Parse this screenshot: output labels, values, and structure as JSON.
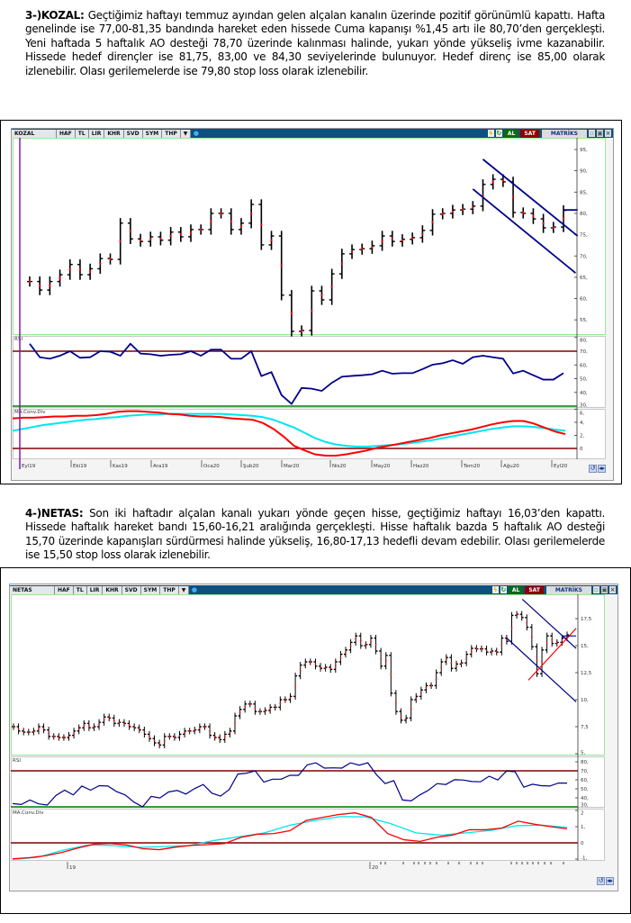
{
  "sections": [
    {
      "title": "3-)KOZAL:",
      "body": "Geçtiğimiz haftayı temmuz ayından gelen alçalan kanalın üzerinde pozitif görünümlü kapattı. Hafta genelinde ise 77,00-81,35 bandında hareket eden hissede Cuma kapanışı %1,45 artı ile 80,70’den gerçekleşti. Yeni haftada 5 haftalık AO desteği 78,70 üzerinde kalınması halinde, yukarı yönde yükseliş ivme kazanabilir. Hissede hedef dirençler ise 81,75, 83,00 ve 84,30 seviyelerinde bulunuyor. Hedef direnç ise 85,00 olarak izlenebilir. Olası gerilemelerde ise 79,80 stop loss olarak izlenebilir."
    },
    {
      "title": "4-)NETAS:",
      "body": "Son iki haftadır alçalan kanalı yukarı yönde geçen hisse, geçtiğimiz haftayı 16,03’den kapattı. Hissede haftalık hareket bandı 15,60-16,21 aralığında gerçekleşti. Hisse haftalık bazda 5 haftalık AO desteği 15,70 üzerinde kapanışları sürdürmesi halinde yükseliş, 16,80-17,13 hedefli devam edebilir. Olası gerilemelerde ise 15,50 stop loss olarak izlenebilir."
    }
  ],
  "toolbar": {
    "buttons": [
      "HAF",
      "TL",
      "LIR",
      "KHR",
      "SVD",
      "SYM",
      "THP"
    ],
    "dropdown_icon": "▼",
    "buy": "AL",
    "sell": "SAT",
    "brand": "MATRİKS"
  },
  "colors": {
    "bars": "#000000",
    "marker": "#ff0000",
    "channel": "#00008b",
    "rsi": "#00008b",
    "macd": "#ff0000",
    "signal": "#00e5ee",
    "upper_ref": "#800000",
    "lower_ref": "#008000"
  },
  "chart_data": [
    {
      "type": "ohlc",
      "symbol": "KOZAL",
      "price_ticks": [
        "95,",
        "90,",
        "85,",
        "80,",
        "75,",
        "70,",
        "65,",
        "60,",
        "55,"
      ],
      "price_tick_values": [
        95,
        90,
        85,
        80,
        75,
        70,
        65,
        60,
        55
      ],
      "date_labels": [
        "Eyl19",
        "Eki19",
        "Kas19",
        "Ara19",
        "Oca20",
        "Şub20",
        "Mar20",
        "Nis20",
        "May20",
        "Haz20",
        "Tem20",
        "Ağu20",
        "Eyl20"
      ],
      "close": [
        64,
        62,
        64,
        65.6,
        68,
        65.6,
        67,
        69.4,
        69.2,
        77.7,
        74,
        73.4,
        74.5,
        73.7,
        75.6,
        74.5,
        76.2,
        76.2,
        80,
        80,
        76.2,
        77.7,
        82.1,
        72.6,
        74.7,
        60.8,
        52.3,
        52.5,
        61.8,
        59.7,
        65.8,
        70.5,
        71.5,
        71.7,
        72.4,
        74.7,
        73.4,
        73.9,
        74.3,
        76,
        79.8,
        80,
        80.8,
        81,
        81.7,
        86.8,
        88,
        87.4,
        80.2,
        80,
        78.7,
        76.6,
        76.8,
        80.7
      ],
      "bar_range": 1.2,
      "trendlines": [
        {
          "color": "channel",
          "from": [
            45.0,
            92.7
          ],
          "to": [
            54.4,
            74.7
          ]
        },
        {
          "color": "channel",
          "from": [
            44.0,
            85.7
          ],
          "to": [
            54.2,
            66.0
          ]
        },
        {
          "color": "channel",
          "from": [
            53.0,
            80.8
          ],
          "to": [
            54.4,
            80.8
          ]
        }
      ],
      "rsi": {
        "label": "RSI",
        "ticks": [
          "80,",
          "70,",
          "60,",
          "50,",
          "40,",
          "30,"
        ],
        "tick_values": [
          80,
          70,
          60,
          50,
          40,
          30
        ],
        "levels": [
          70,
          30
        ],
        "values": [
          75.4,
          65.6,
          64.5,
          66.7,
          70,
          65.2,
          65.6,
          70,
          69.6,
          66.7,
          75.4,
          68.3,
          67.8,
          66.7,
          67.4,
          67.8,
          70,
          66.7,
          71.1,
          71.1,
          64.5,
          64.5,
          70,
          51.9,
          54.7,
          38.1,
          31.6,
          43.2,
          42.7,
          41.1,
          47,
          51.4,
          52,
          52.5,
          53.2,
          55.8,
          53.6,
          54,
          54,
          56.9,
          60.2,
          61.2,
          63.4,
          60.8,
          65.6,
          66.7,
          65.6,
          64.5,
          53.8,
          55.8,
          52.5,
          49.3,
          49.3,
          54
        ]
      },
      "macd": {
        "label": "MA.Conv.Div",
        "ticks": [
          "6,",
          "4,",
          "2,",
          "0"
        ],
        "tick_values": [
          6,
          4,
          2,
          0
        ],
        "zero": 0,
        "macd": [
          4.6,
          4.7,
          4.7,
          4.8,
          4.9,
          4.9,
          5.0,
          5.0,
          5.1,
          5.3,
          5.6,
          5.7,
          5.7,
          5.6,
          5.5,
          5.3,
          5.2,
          5.0,
          4.9,
          4.9,
          4.8,
          4.6,
          4.5,
          4.4,
          3.9,
          3.0,
          1.8,
          0.4,
          -0.3,
          -0.9,
          -1.1,
          -1.1,
          -0.9,
          -0.6,
          -0.3,
          0.1,
          0.4,
          0.7,
          1.0,
          1.3,
          1.6,
          2.0,
          2.3,
          2.6,
          2.9,
          3.3,
          3.7,
          4.0,
          4.2,
          4.2,
          3.8,
          3.2,
          2.6,
          2.2
        ],
        "signal": [
          2.7,
          3.0,
          3.3,
          3.6,
          3.8,
          4.0,
          4.2,
          4.4,
          4.5,
          4.7,
          4.8,
          5.0,
          5.1,
          5.2,
          5.2,
          5.3,
          5.3,
          5.3,
          5.3,
          5.3,
          5.3,
          5.2,
          5.1,
          5.0,
          4.8,
          4.4,
          3.8,
          3.2,
          2.4,
          1.6,
          1.0,
          0.6,
          0.4,
          0.3,
          0.3,
          0.4,
          0.5,
          0.6,
          0.8,
          1.0,
          1.2,
          1.5,
          1.8,
          2.1,
          2.4,
          2.7,
          3.0,
          3.2,
          3.4,
          3.4,
          3.3,
          3.1,
          2.9,
          2.7
        ]
      }
    },
    {
      "type": "ohlc",
      "symbol": "NETAS",
      "price_ticks": [
        "17,5",
        "15,",
        "12,5",
        "10,",
        "7,5",
        "5,"
      ],
      "price_tick_values": [
        17.5,
        15,
        12.5,
        10,
        7.5,
        5
      ],
      "date_labels": [
        "19",
        "20"
      ],
      "close": [
        7.5,
        7.1,
        7.0,
        7.0,
        7.1,
        7.5,
        7.2,
        6.6,
        6.6,
        6.5,
        6.5,
        6.7,
        7.1,
        7.4,
        7.8,
        7.4,
        7.5,
        7.9,
        8.4,
        8.3,
        7.8,
        7.9,
        7.8,
        7.5,
        7.4,
        7.2,
        6.8,
        6.4,
        6.0,
        5.8,
        6.6,
        6.6,
        6.5,
        6.8,
        7.1,
        7.1,
        7.2,
        7.5,
        7.5,
        6.7,
        6.5,
        6.3,
        6.8,
        7.1,
        8.5,
        9.1,
        9.6,
        9.6,
        8.9,
        8.9,
        9.0,
        9.3,
        9.3,
        10.0,
        10.0,
        10.3,
        12.2,
        13.2,
        13.5,
        13.5,
        13.1,
        12.9,
        13.0,
        12.8,
        13.5,
        14.2,
        14.6,
        15.3,
        15.9,
        15.0,
        15.1,
        15.7,
        14.5,
        13.1,
        14.1,
        10.6,
        8.9,
        8.1,
        8.3,
        10.0,
        10.3,
        10.9,
        11.3,
        11.3,
        12.5,
        13.5,
        13.9,
        12.9,
        13.3,
        13.4,
        14.2,
        14.75,
        14.7,
        14.7,
        14.4,
        14.5,
        14.4,
        15.7,
        15.4,
        17.8,
        17.9,
        17.6,
        16.7,
        14.9,
        12.4,
        14.6,
        15.9,
        15.2,
        15.3,
        15.7,
        16.0
      ],
      "bar_range": 0.3,
      "trendlines": [
        {
          "color": "channel",
          "from": [
            101.1,
            19.3
          ],
          "to": [
            111.8,
            14.75
          ]
        },
        {
          "color": "channel",
          "from": [
            97.9,
            15.75
          ],
          "to": [
            111.8,
            9.8
          ]
        },
        {
          "color": "macd",
          "from": [
            102.3,
            11.8
          ],
          "to": [
            111.8,
            16.6
          ]
        },
        {
          "color": "channel",
          "from": [
            109.0,
            15.9
          ],
          "to": [
            111.8,
            15.9
          ]
        }
      ],
      "rsi": {
        "label": "RSI",
        "ticks": [
          "80,",
          "70,",
          "60,",
          "50,",
          "40,",
          "30,"
        ],
        "tick_values": [
          80,
          70,
          60,
          50,
          40,
          30
        ],
        "levels": [
          70,
          30
        ],
        "values": [
          33.6,
          32.6,
          37.6,
          33.3,
          32,
          42.6,
          48.5,
          43.2,
          53.1,
          48.5,
          53.5,
          53.1,
          46.9,
          43.2,
          35.3,
          30,
          41.6,
          39.9,
          46.5,
          48.2,
          44.2,
          50.2,
          54.8,
          45.2,
          41.9,
          49.2,
          66.4,
          67.4,
          70,
          57.4,
          60.7,
          60.7,
          65,
          65,
          76.6,
          78.9,
          73,
          73.3,
          73,
          78.9,
          76.3,
          78.9,
          65.7,
          55.8,
          59.1,
          37.6,
          36.6,
          43.2,
          48.5,
          55.8,
          54.8,
          60.1,
          59.8,
          58.1,
          57.8,
          64,
          59.8,
          69.7,
          69,
          51.8,
          55.1,
          53.5,
          53.1,
          56.4,
          56.4
        ]
      },
      "macd": {
        "label": "MA.Conv.Div",
        "ticks": [
          "2",
          "1,",
          "0",
          "-1,"
        ],
        "tick_values": [
          2,
          1,
          0,
          -1
        ],
        "zero": 0,
        "macd": [
          -0.98,
          -0.92,
          -0.8,
          -0.6,
          -0.32,
          -0.08,
          -0.04,
          -0.13,
          -0.36,
          -0.42,
          -0.26,
          -0.15,
          -0.11,
          -0.04,
          0.34,
          0.53,
          0.57,
          0.75,
          1.38,
          1.57,
          1.75,
          1.85,
          1.57,
          0.57,
          0.19,
          0.09,
          0.34,
          0.49,
          0.81,
          0.81,
          0.91,
          1.34,
          1.15,
          1.0,
          0.87
        ],
        "signal": [
          -1.02,
          -0.89,
          -0.45,
          -0.13,
          -0.17,
          -0.28,
          -0.23,
          -0.17,
          0.15,
          0.38,
          0.62,
          1.09,
          1.38,
          1.62,
          1.6,
          1.19,
          0.62,
          0.47,
          0.62,
          0.77,
          1.06,
          1.09,
          0.96
        ]
      }
    }
  ]
}
